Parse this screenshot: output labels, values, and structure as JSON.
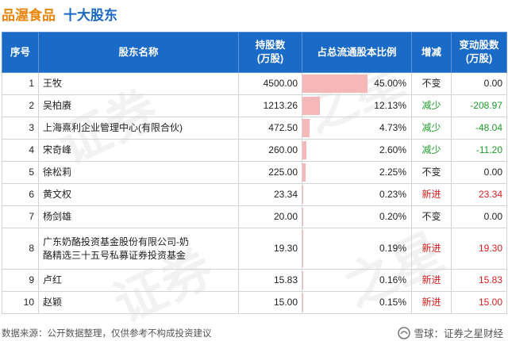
{
  "title": {
    "company": "品渥食品",
    "main": "十大股东"
  },
  "table": {
    "headers": {
      "no": "序号",
      "name": "股东名称",
      "hold_line1": "持股数",
      "hold_line2": "(万股)",
      "ratio": "占总流通股本比例",
      "change": "增减",
      "delta_line1": "变动股数",
      "delta_line2": "(万股)"
    },
    "rows": [
      {
        "no": "1",
        "name": "王牧",
        "name2": "",
        "hold": "4500.00",
        "ratio": "45.00%",
        "ratio_value": 45.0,
        "change": "不变",
        "delta": "0.00",
        "status": "flat"
      },
      {
        "no": "2",
        "name": "吴柏赓",
        "name2": "",
        "hold": "1213.26",
        "ratio": "12.13%",
        "ratio_value": 12.13,
        "change": "减少",
        "delta": "-208.97",
        "status": "down"
      },
      {
        "no": "3",
        "name": "上海熹利企业管理中心(有限合伙)",
        "name2": "",
        "hold": "472.50",
        "ratio": "4.73%",
        "ratio_value": 4.73,
        "change": "减少",
        "delta": "-48.04",
        "status": "down"
      },
      {
        "no": "4",
        "name": "宋奇峰",
        "name2": "",
        "hold": "260.00",
        "ratio": "2.60%",
        "ratio_value": 2.6,
        "change": "减少",
        "delta": "-11.20",
        "status": "down"
      },
      {
        "no": "5",
        "name": "徐松莉",
        "name2": "",
        "hold": "225.00",
        "ratio": "2.25%",
        "ratio_value": 2.25,
        "change": "不变",
        "delta": "0.00",
        "status": "flat"
      },
      {
        "no": "6",
        "name": "黄文权",
        "name2": "",
        "hold": "23.34",
        "ratio": "0.23%",
        "ratio_value": 0.23,
        "change": "新进",
        "delta": "23.34",
        "status": "up"
      },
      {
        "no": "7",
        "name": "杨剑雄",
        "name2": "",
        "hold": "20.00",
        "ratio": "0.20%",
        "ratio_value": 0.2,
        "change": "不变",
        "delta": "0.00",
        "status": "flat"
      },
      {
        "no": "8",
        "name": "广东奶酪投资基金股份有限公司-奶",
        "name2": "酪精选三十五号私募证券投资基金",
        "hold": "19.30",
        "ratio": "0.19%",
        "ratio_value": 0.19,
        "change": "新进",
        "delta": "19.30",
        "status": "up"
      },
      {
        "no": "9",
        "name": "卢红",
        "name2": "",
        "hold": "15.83",
        "ratio": "0.16%",
        "ratio_value": 0.16,
        "change": "新进",
        "delta": "15.83",
        "status": "up"
      },
      {
        "no": "10",
        "name": "赵颖",
        "name2": "",
        "hold": "15.00",
        "ratio": "0.15%",
        "ratio_value": 0.15,
        "change": "新进",
        "delta": "15.00",
        "status": "up"
      }
    ]
  },
  "footer": {
    "source": "数据来源：公开数据整理，仅供参考不构成投资建议",
    "brand": "雪球：证券之星财经"
  },
  "watermark": "证券之星",
  "colors": {
    "header_bg": "#1a6ac7",
    "company": "#e8840a",
    "title": "#1a67c4",
    "bar": "#f6b7b9",
    "up": "#d81e1e",
    "down": "#1f9a2c"
  },
  "icons": {
    "brand_logo": "snowball-logo-icon"
  }
}
